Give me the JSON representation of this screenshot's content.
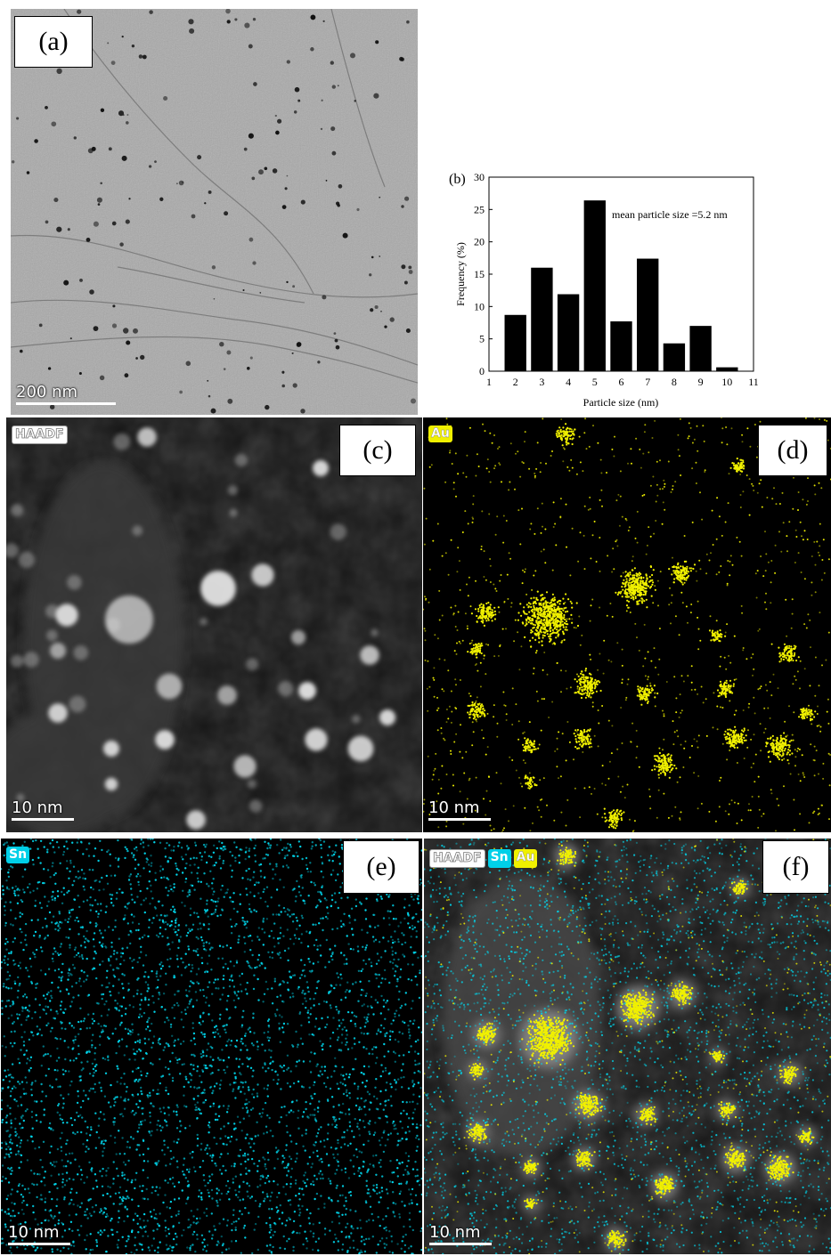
{
  "panels": {
    "a": {
      "label": "(a)",
      "scale_bar": "200 nm"
    },
    "b": {
      "label": "(b)"
    },
    "c": {
      "label": "(c)",
      "tags": [
        "HAADF"
      ],
      "scale_bar": "10 nm"
    },
    "d": {
      "label": "(d)",
      "tags": [
        "Au"
      ],
      "scale_bar": "10 nm"
    },
    "e": {
      "label": "(e)",
      "tags": [
        "Sn"
      ],
      "scale_bar": "10 nm"
    },
    "f": {
      "label": "(f)",
      "tags": [
        "HAADF",
        "Sn",
        "Au"
      ],
      "scale_bar": "10 nm"
    }
  },
  "colors": {
    "au": "#f0f000",
    "sn": "#00d8ee",
    "tem_bg": "#a8a8a8",
    "stem_bg": "#141414"
  },
  "chart_data": {
    "type": "bar",
    "categories": [
      2,
      3,
      4,
      5,
      6,
      7,
      8,
      9,
      10
    ],
    "values": [
      8.7,
      16,
      11.9,
      26.4,
      7.7,
      17.4,
      4.3,
      7,
      0.6
    ],
    "xlabel": "Particle size (nm)",
    "ylabel": "Frequency (%)",
    "annotation": "mean particle size =5.2 nm",
    "xlim": [
      1,
      11
    ],
    "ylim": [
      0,
      30
    ],
    "xticks": [
      1,
      2,
      3,
      4,
      5,
      6,
      7,
      8,
      9,
      10,
      11
    ],
    "yticks": [
      0,
      5,
      10,
      15,
      20,
      25,
      30
    ],
    "grid": false,
    "legend": "none"
  }
}
